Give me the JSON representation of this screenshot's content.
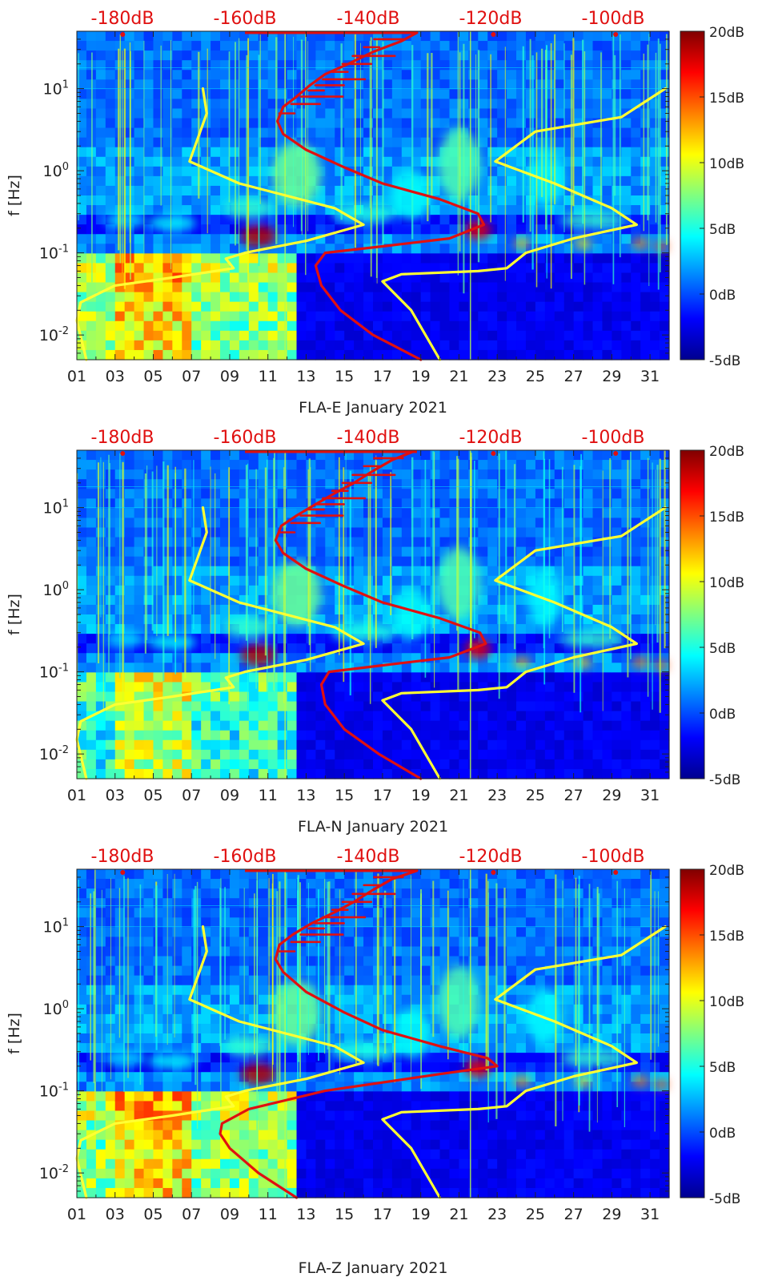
{
  "figure": {
    "colormap": "jet",
    "month_label": "January 2021",
    "overlay_colors": {
      "model_curve": "#ffff33",
      "noise_curve": "#e01010",
      "top_label": "#e01010"
    }
  },
  "chart_data": [
    {
      "type": "heatmap",
      "title": "FLA-E",
      "xlabel": "FLA-E January 2021",
      "ylabel": "f [Hz]",
      "x_ticks": [
        "01",
        "03",
        "05",
        "07",
        "09",
        "11",
        "13",
        "15",
        "17",
        "19",
        "21",
        "23",
        "25",
        "27",
        "29",
        "31"
      ],
      "y_ticks": [
        "10^-2",
        "10^-1",
        "10^0",
        "10^1"
      ],
      "y_range_hz": [
        0.005,
        50
      ],
      "x_range_days": [
        1,
        32
      ],
      "top_axis_labels": [
        "-180dB",
        "-160dB",
        "-140dB",
        "-120dB",
        "-100dB"
      ],
      "colorbar": {
        "range_db": [
          -5,
          20
        ],
        "ticks": [
          "20dB",
          "15dB",
          "10dB",
          "5dB",
          "0dB",
          "-5dB"
        ]
      },
      "series": [
        {
          "name": "yellow-curve",
          "color": "#ffff33",
          "x": [
            7.6,
            7.8,
            6.9,
            9.5,
            14.5,
            16.0,
            13.0,
            9.8,
            8.8,
            9.2,
            6.0,
            3.0,
            1.2,
            1.0,
            1.5
          ],
          "y": [
            10,
            5,
            1.3,
            0.7,
            0.35,
            0.22,
            0.14,
            0.1,
            0.085,
            0.065,
            0.05,
            0.04,
            0.025,
            0.015,
            0.005
          ]
        },
        {
          "name": "yellow-curve-right",
          "color": "#ffff33",
          "x": [
            20.0,
            18.5,
            17.0,
            18.0,
            22.0,
            23.5,
            24.5,
            27.0,
            30.3,
            29.0,
            26.0,
            22.9,
            25.0,
            29.5,
            31.8
          ],
          "y": [
            0.005,
            0.02,
            0.045,
            0.055,
            0.06,
            0.065,
            0.1,
            0.15,
            0.22,
            0.35,
            0.7,
            1.3,
            3,
            4.5,
            10
          ]
        },
        {
          "name": "red-curve",
          "color": "#e01010",
          "x": [
            19.0,
            16.5,
            14.8,
            13.8,
            13.5,
            14.0,
            17.0,
            20.5,
            22.3,
            22.0,
            20.0,
            17.0,
            15.0,
            13.0,
            11.8,
            11.5,
            11.8,
            12.5,
            13.2,
            14.0,
            15.2,
            16.5,
            18.0,
            18.8
          ],
          "y": [
            0.005,
            0.01,
            0.02,
            0.04,
            0.07,
            0.1,
            0.12,
            0.15,
            0.22,
            0.3,
            0.45,
            0.7,
            1.1,
            1.8,
            2.8,
            4,
            6,
            8,
            11,
            15,
            20,
            28,
            38,
            48
          ]
        }
      ]
    },
    {
      "type": "heatmap",
      "title": "FLA-N",
      "xlabel": "FLA-N January 2021",
      "ylabel": "f [Hz]",
      "x_ticks": [
        "01",
        "03",
        "05",
        "07",
        "09",
        "11",
        "13",
        "15",
        "17",
        "19",
        "21",
        "23",
        "25",
        "27",
        "29",
        "31"
      ],
      "y_ticks": [
        "10^-2",
        "10^-1",
        "10^0",
        "10^1"
      ],
      "y_range_hz": [
        0.005,
        50
      ],
      "x_range_days": [
        1,
        32
      ],
      "top_axis_labels": [
        "-180dB",
        "-160dB",
        "-140dB",
        "-120dB",
        "-100dB"
      ],
      "colorbar": {
        "range_db": [
          -5,
          20
        ],
        "ticks": [
          "20dB",
          "15dB",
          "10dB",
          "5dB",
          "0dB",
          "-5dB"
        ]
      },
      "series": [
        {
          "name": "yellow-curve",
          "color": "#ffff33",
          "x": [
            7.6,
            7.8,
            6.9,
            9.5,
            14.5,
            16.0,
            13.0,
            9.8,
            8.8,
            9.2,
            6.0,
            3.0,
            1.2,
            1.0,
            1.5
          ],
          "y": [
            10,
            5,
            1.3,
            0.7,
            0.35,
            0.22,
            0.14,
            0.1,
            0.085,
            0.065,
            0.05,
            0.04,
            0.025,
            0.015,
            0.005
          ]
        },
        {
          "name": "yellow-curve-right",
          "color": "#ffff33",
          "x": [
            20.0,
            18.5,
            17.0,
            18.0,
            22.0,
            23.5,
            24.5,
            27.0,
            30.3,
            29.0,
            26.0,
            22.9,
            25.0,
            29.5,
            31.8
          ],
          "y": [
            0.005,
            0.02,
            0.045,
            0.055,
            0.06,
            0.065,
            0.1,
            0.15,
            0.22,
            0.35,
            0.7,
            1.3,
            3,
            4.5,
            10
          ]
        },
        {
          "name": "red-curve",
          "color": "#e01010",
          "x": [
            19.0,
            16.8,
            15.0,
            14.0,
            13.8,
            14.2,
            17.0,
            20.5,
            22.4,
            22.1,
            20.0,
            17.0,
            15.0,
            13.0,
            11.8,
            11.4,
            11.7,
            12.5,
            13.5,
            14.5,
            15.5,
            16.5,
            17.5,
            18.6
          ],
          "y": [
            0.005,
            0.01,
            0.02,
            0.04,
            0.07,
            0.1,
            0.12,
            0.15,
            0.22,
            0.3,
            0.45,
            0.7,
            1.1,
            1.8,
            2.8,
            4,
            6,
            8,
            11,
            15,
            20,
            28,
            38,
            48
          ]
        }
      ]
    },
    {
      "type": "heatmap",
      "title": "FLA-Z",
      "xlabel": "FLA-Z January 2021",
      "ylabel": "f [Hz]",
      "x_ticks": [
        "01",
        "03",
        "05",
        "07",
        "09",
        "11",
        "13",
        "15",
        "17",
        "19",
        "21",
        "23",
        "25",
        "27",
        "29",
        "31"
      ],
      "y_ticks": [
        "10^-2",
        "10^-1",
        "10^0",
        "10^1"
      ],
      "y_range_hz": [
        0.005,
        50
      ],
      "x_range_days": [
        1,
        32
      ],
      "top_axis_labels": [
        "-180dB",
        "-160dB",
        "-140dB",
        "-120dB",
        "-100dB"
      ],
      "colorbar": {
        "range_db": [
          -5,
          20
        ],
        "ticks": [
          "20dB",
          "15dB",
          "10dB",
          "5dB",
          "0dB",
          "-5dB"
        ]
      },
      "series": [
        {
          "name": "yellow-curve",
          "color": "#ffff33",
          "x": [
            7.6,
            7.8,
            6.9,
            9.5,
            14.5,
            16.0,
            13.0,
            9.8,
            8.8,
            9.2,
            6.0,
            3.0,
            1.2,
            1.0,
            1.5
          ],
          "y": [
            10,
            5,
            1.3,
            0.7,
            0.35,
            0.22,
            0.14,
            0.1,
            0.085,
            0.065,
            0.05,
            0.04,
            0.025,
            0.015,
            0.005
          ]
        },
        {
          "name": "yellow-curve-right",
          "color": "#ffff33",
          "x": [
            20.0,
            18.5,
            17.0,
            18.0,
            22.0,
            23.5,
            24.5,
            27.0,
            30.3,
            29.0,
            26.0,
            22.9,
            25.0,
            29.5,
            31.8
          ],
          "y": [
            0.005,
            0.02,
            0.045,
            0.055,
            0.06,
            0.065,
            0.1,
            0.15,
            0.22,
            0.35,
            0.7,
            1.3,
            3,
            4.5,
            10
          ]
        },
        {
          "name": "red-curve",
          "color": "#e01010",
          "x": [
            12.5,
            10.5,
            9.0,
            8.5,
            8.6,
            10.0,
            14.0,
            20.0,
            23.0,
            22.5,
            20.0,
            17.0,
            15.0,
            13.0,
            11.8,
            11.4,
            11.6,
            12.3,
            13.3,
            14.5,
            15.5,
            16.5,
            17.5,
            18.8
          ],
          "y": [
            0.005,
            0.01,
            0.02,
            0.03,
            0.04,
            0.06,
            0.1,
            0.16,
            0.2,
            0.25,
            0.35,
            0.55,
            0.9,
            1.6,
            2.8,
            4,
            6,
            8,
            11,
            15,
            20,
            28,
            38,
            48
          ]
        }
      ]
    }
  ]
}
